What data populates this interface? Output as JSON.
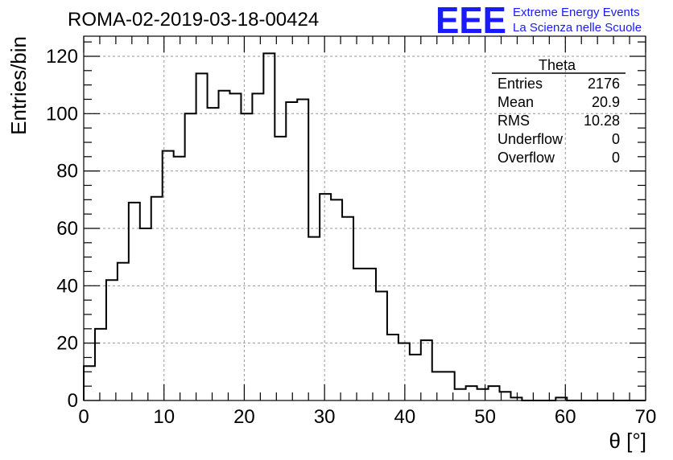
{
  "chart_data": {
    "type": "bar",
    "title": "ROMA-02-2019-03-18-00424",
    "xlabel": "θ [°]",
    "ylabel": "Entries/bin",
    "xlim": [
      0,
      70
    ],
    "ylim": [
      0,
      127
    ],
    "grid": true,
    "bin_width": 1.4,
    "xticks": [
      "0",
      "10",
      "20",
      "30",
      "40",
      "50",
      "60",
      "70"
    ],
    "yticks": [
      "0",
      "20",
      "40",
      "60",
      "80",
      "100",
      "120"
    ],
    "xtick_values": [
      0,
      10,
      20,
      30,
      40,
      50,
      60,
      70
    ],
    "ytick_values": [
      0,
      20,
      40,
      60,
      80,
      100,
      120
    ],
    "values": [
      12,
      25,
      42,
      48,
      69,
      60,
      71,
      87,
      85,
      100,
      114,
      102,
      108,
      107,
      100,
      107,
      121,
      92,
      104,
      105,
      57,
      72,
      70,
      64,
      46,
      46,
      38,
      23,
      20,
      16,
      21,
      10,
      10,
      4,
      5,
      4,
      5,
      3,
      1,
      0,
      0,
      0,
      1,
      0,
      0,
      0,
      0,
      0,
      0,
      0
    ]
  },
  "stats": {
    "title": "Theta",
    "rows": [
      {
        "label": "Entries",
        "value": "2176"
      },
      {
        "label": "Mean",
        "value": "20.9"
      },
      {
        "label": "RMS",
        "value": "10.28"
      },
      {
        "label": "Underflow",
        "value": "0"
      },
      {
        "label": "Overflow",
        "value": "0"
      }
    ]
  },
  "logo": {
    "mark": "EEE",
    "line1": "Extreme Energy Events",
    "line2": "La Scienza nelle Scuole",
    "color": "#1a1aff"
  }
}
